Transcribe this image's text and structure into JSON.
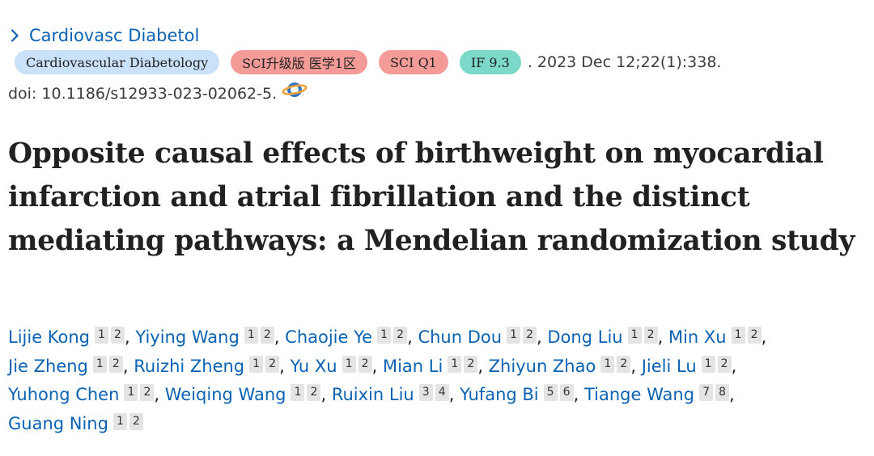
{
  "journal": {
    "link_label": "Cardiovasc Diabetol"
  },
  "badges": {
    "journal_full": "Cardiovascular Diabetology",
    "sci_upgrade": "SCI升级版 医学1区",
    "sci_q": "SCI Q1",
    "impact_factor": "IF 9.3"
  },
  "citation": ". 2023 Dec 12;22(1):338.",
  "doi": "doi: 10.1186/s12933-023-02062-5.",
  "title": "Opposite causal effects of birthweight on myocardial infarction and atrial fibrillation and the distinct mediating pathways: a Mendelian randomization study",
  "authors": [
    {
      "name": "Lijie Kong",
      "affil": [
        "1",
        "2"
      ]
    },
    {
      "name": "Yiying Wang",
      "affil": [
        "1",
        "2"
      ]
    },
    {
      "name": "Chaojie Ye",
      "affil": [
        "1",
        "2"
      ]
    },
    {
      "name": "Chun Dou",
      "affil": [
        "1",
        "2"
      ]
    },
    {
      "name": "Dong Liu",
      "affil": [
        "1",
        "2"
      ]
    },
    {
      "name": "Min Xu",
      "affil": [
        "1",
        "2"
      ]
    },
    {
      "name": "Jie Zheng",
      "affil": [
        "1",
        "2"
      ]
    },
    {
      "name": "Ruizhi Zheng",
      "affil": [
        "1",
        "2"
      ]
    },
    {
      "name": "Yu Xu",
      "affil": [
        "1",
        "2"
      ]
    },
    {
      "name": "Mian Li",
      "affil": [
        "1",
        "2"
      ]
    },
    {
      "name": "Zhiyun Zhao",
      "affil": [
        "1",
        "2"
      ]
    },
    {
      "name": "Jieli Lu",
      "affil": [
        "1",
        "2"
      ]
    },
    {
      "name": "Yuhong Chen",
      "affil": [
        "1",
        "2"
      ]
    },
    {
      "name": "Weiqing Wang",
      "affil": [
        "1",
        "2"
      ]
    },
    {
      "name": "Ruixin Liu",
      "affil": [
        "3",
        "4"
      ]
    },
    {
      "name": "Yufang Bi",
      "affil": [
        "5",
        "6"
      ]
    },
    {
      "name": "Tiange Wang",
      "affil": [
        "7",
        "8"
      ]
    },
    {
      "name": "Guang Ning",
      "affil": [
        "1",
        "2"
      ]
    }
  ],
  "colors": {
    "link": "#0b62b3",
    "journal_badge": "#c9e2f9",
    "red_badge": "#f49b98",
    "teal_badge": "#7cd8c8",
    "affil_badge": "#e4e4e4"
  },
  "icons": {
    "journal_chevron": "chevron-right-icon",
    "doi_link": "full-text-link-icon"
  }
}
